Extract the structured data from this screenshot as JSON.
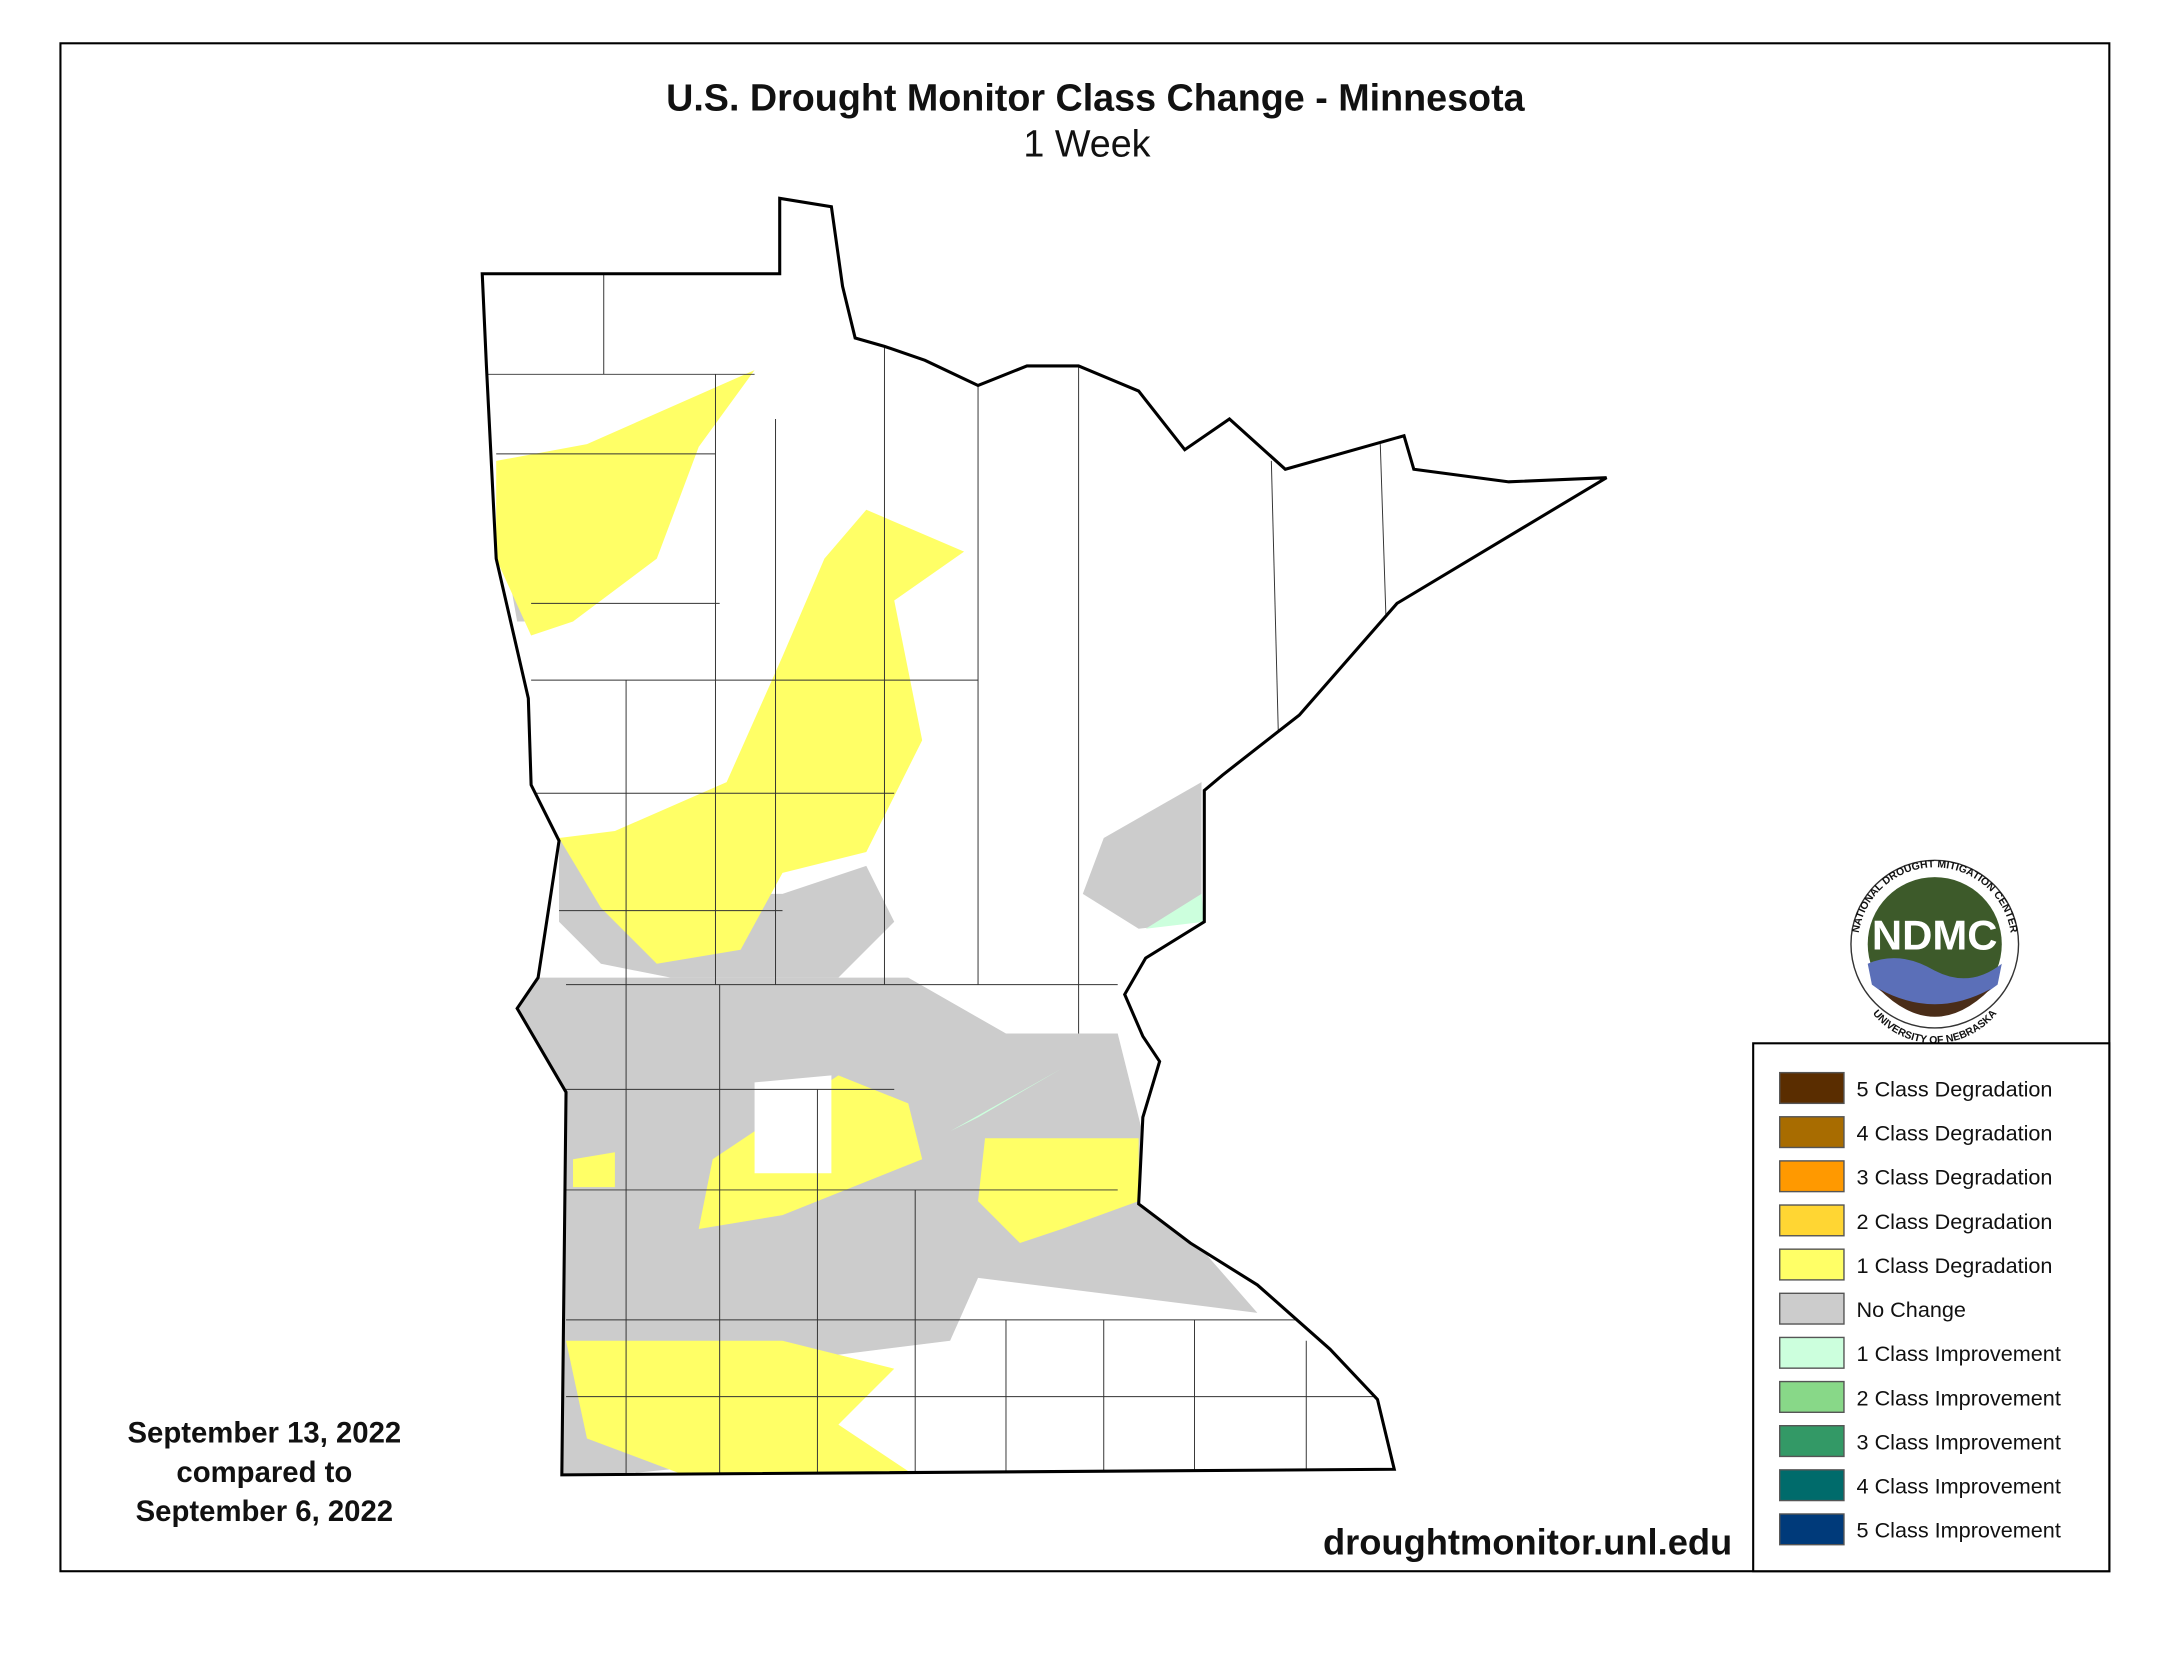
{
  "header": {
    "title": "U.S. Drought Monitor Class Change - Minnesota",
    "subtitle": "1 Week"
  },
  "dates": [
    "September 13, 2022",
    "compared to",
    "September 6, 2022"
  ],
  "url": "droughtmonitor.unl.edu",
  "logo": {
    "acronym": "NDMC",
    "top_arc": "NATIONAL DROUGHT MITIGATION CENTER",
    "bottom_arc": "UNIVERSITY OF NEBRASKA"
  },
  "legend": [
    {
      "label": "5 Class Degradation",
      "color": "#5a2d00"
    },
    {
      "label": "4 Class Degradation",
      "color": "#a86c00"
    },
    {
      "label": "3 Class Degradation",
      "color": "#ff9900"
    },
    {
      "label": "2 Class Degradation",
      "color": "#ffd633"
    },
    {
      "label": "1 Class Degradation",
      "color": "#ffff66"
    },
    {
      "label": "No Change",
      "color": "#cccccc"
    },
    {
      "label": "1 Class Improvement",
      "color": "#ccffdd"
    },
    {
      "label": "2 Class Improvement",
      "color": "#88d888"
    },
    {
      "label": "3 Class Improvement",
      "color": "#339966"
    },
    {
      "label": "4 Class Improvement",
      "color": "#006b6b"
    },
    {
      "label": "5 Class Improvement",
      "color": "#003a7a"
    }
  ]
}
